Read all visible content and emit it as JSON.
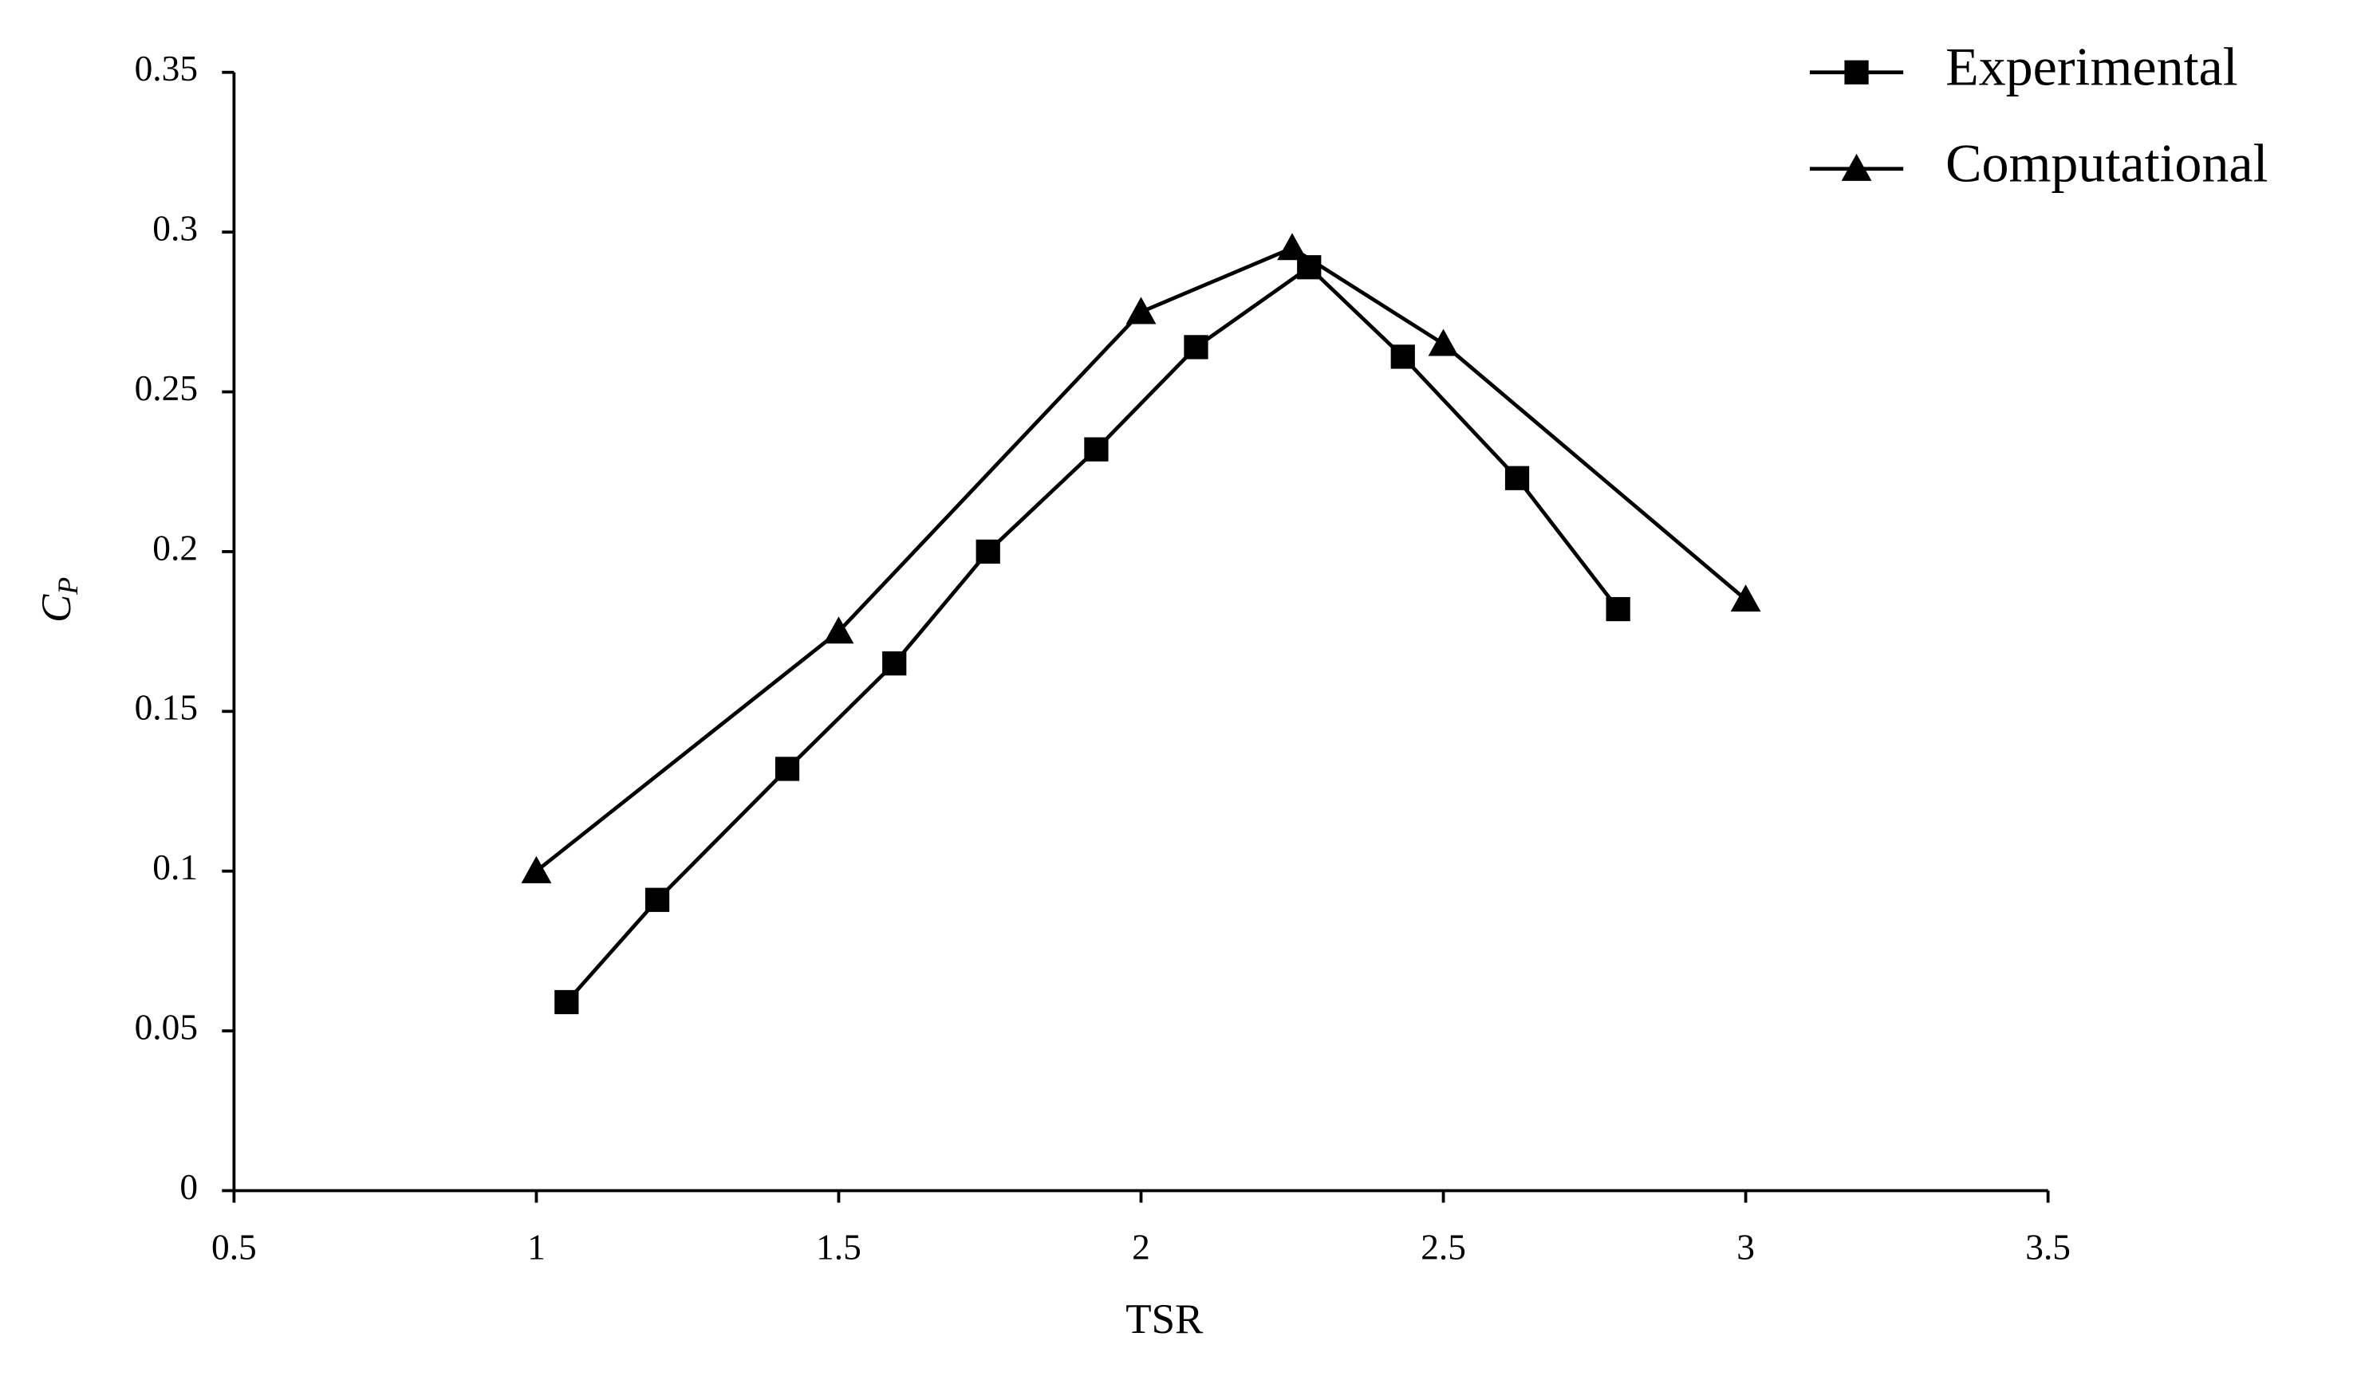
{
  "chart_data": {
    "type": "line",
    "x_label": "TSR",
    "y_label": "C",
    "y_label_subscript": "P",
    "xlim": [
      0.5,
      3.5
    ],
    "xticks": [
      0.5,
      1,
      1.5,
      2,
      2.5,
      3,
      3.5
    ],
    "ylim": [
      0,
      0.35
    ],
    "yticks": [
      0,
      0.05,
      0.1,
      0.15,
      0.2,
      0.25,
      0.3,
      0.35
    ],
    "grid": false,
    "legend": "top-right",
    "series": [
      {
        "name": "Experimental",
        "color": "#000000",
        "marker": "square",
        "x": [
          1.05,
          1.2,
          1.415,
          1.592,
          1.747,
          1.926,
          2.091,
          2.278,
          2.433,
          2.622,
          2.789
        ],
        "values": [
          0.059,
          0.091,
          0.132,
          0.165,
          0.2,
          0.232,
          0.264,
          0.289,
          0.261,
          0.223,
          0.182
        ]
      },
      {
        "name": "Computational",
        "color": "#000000",
        "marker": "triangle",
        "x": [
          1.0,
          1.5,
          2.0,
          2.25,
          2.5,
          3.0
        ],
        "values": [
          0.1,
          0.175,
          0.275,
          0.295,
          0.265,
          0.185
        ]
      }
    ]
  }
}
